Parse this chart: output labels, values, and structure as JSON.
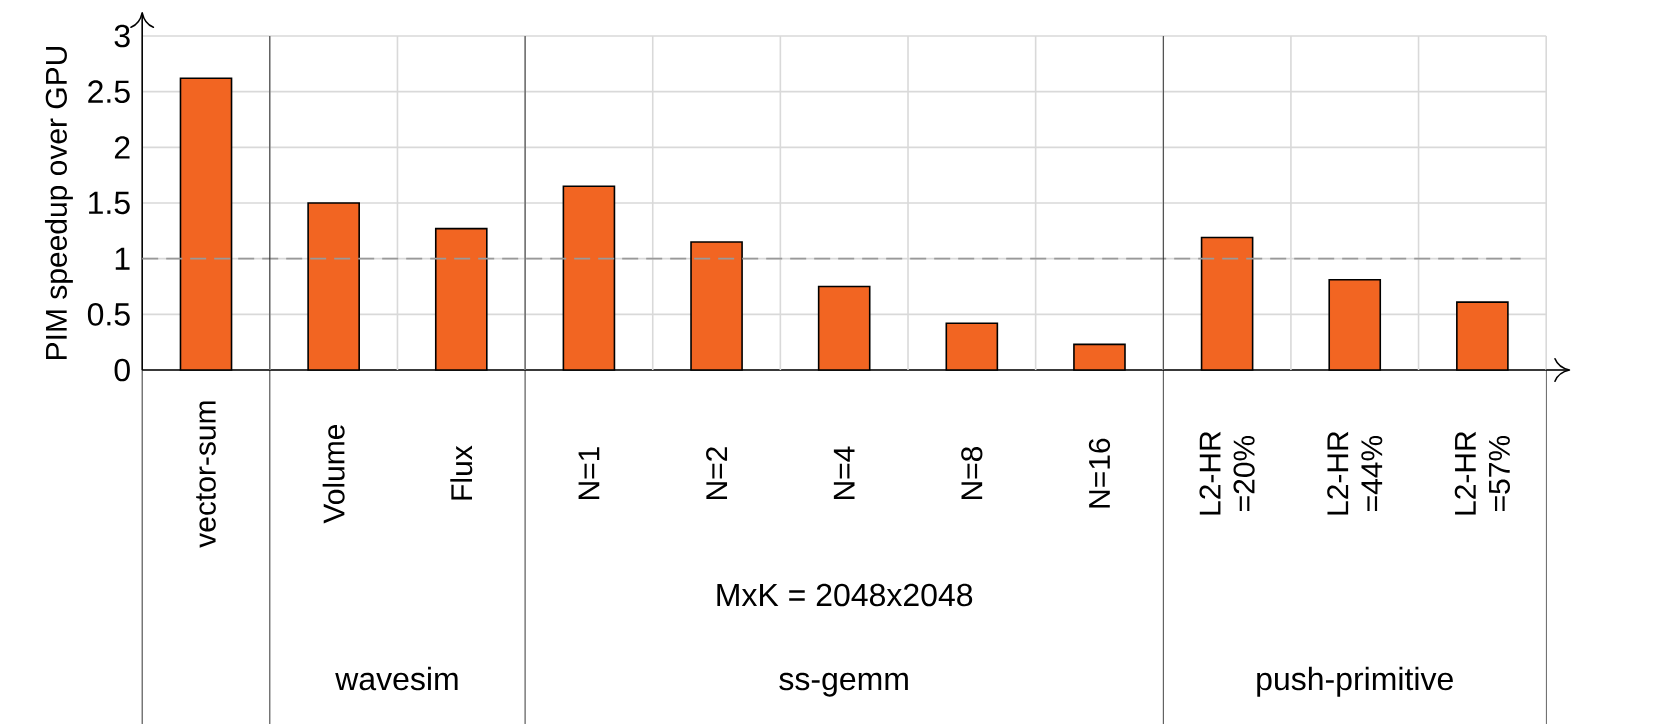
{
  "chart_data": {
    "type": "bar",
    "ylabel": "PIM speedup over GPU",
    "categories": [
      "vector-sum",
      "Volume",
      "Flux",
      "N=1",
      "N=2",
      "N=4",
      "N=8",
      "N=16",
      "L2-HR =20%",
      "L2-HR =44%",
      "L2-HR =57%"
    ],
    "values": [
      2.62,
      1.5,
      1.27,
      1.65,
      1.15,
      0.75,
      0.42,
      0.23,
      1.19,
      0.81,
      0.61
    ],
    "color": "#f26522",
    "ylim": [
      0,
      3
    ],
    "yticks": [
      0,
      0.5,
      1,
      1.5,
      2,
      2.5,
      3
    ],
    "grid": true,
    "ref_lines": [
      {
        "axis": "y",
        "value": 1,
        "color": "#999999",
        "line_style": "dashed"
      }
    ],
    "annotations": [
      "MxK = 2048x2048",
      "wavesim",
      "ss-gemm",
      "push-primitive"
    ]
  }
}
